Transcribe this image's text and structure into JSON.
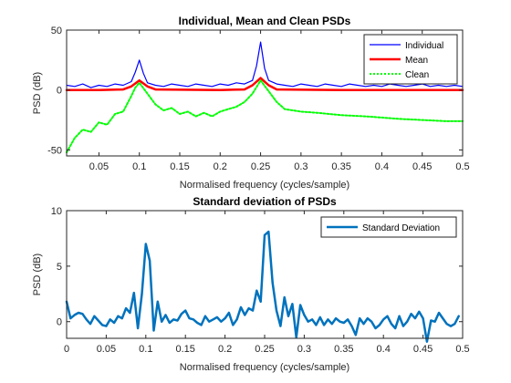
{
  "chart_data": [
    {
      "type": "line",
      "title": "Individual, Mean and Clean PSDs",
      "xlabel": "Normalised frequency (cycles/sample)",
      "ylabel": "PSD (dB)",
      "xlim": [
        0.01,
        0.5
      ],
      "ylim": [
        -55,
        50
      ],
      "xticks": [
        "0.05",
        "0.1",
        "0.15",
        "0.2",
        "0.25",
        "0.3",
        "0.35",
        "0.4",
        "0.45",
        "0.5"
      ],
      "yticks": [
        "-50",
        "0",
        "50"
      ],
      "legend_position": "top-right",
      "colors": {
        "individual": "#0000ff",
        "mean": "#ff0000",
        "clean": "#00ff00"
      },
      "series": [
        {
          "name": "Individual",
          "style": "solid",
          "x": [
            0.01,
            0.02,
            0.03,
            0.04,
            0.05,
            0.06,
            0.07,
            0.08,
            0.09,
            0.095,
            0.1,
            0.105,
            0.11,
            0.12,
            0.13,
            0.14,
            0.15,
            0.16,
            0.17,
            0.18,
            0.19,
            0.2,
            0.21,
            0.22,
            0.23,
            0.24,
            0.245,
            0.25,
            0.255,
            0.26,
            0.27,
            0.28,
            0.29,
            0.3,
            0.31,
            0.32,
            0.33,
            0.34,
            0.35,
            0.36,
            0.37,
            0.38,
            0.39,
            0.4,
            0.41,
            0.42,
            0.43,
            0.44,
            0.45,
            0.46,
            0.47,
            0.48,
            0.49,
            0.5
          ],
          "y": [
            4,
            3,
            5,
            2,
            4,
            3,
            5,
            4,
            7,
            15,
            25,
            14,
            6,
            4,
            3,
            5,
            4,
            3,
            5,
            4,
            3,
            5,
            4,
            6,
            5,
            8,
            20,
            40,
            18,
            8,
            5,
            4,
            3,
            5,
            4,
            3,
            5,
            4,
            3,
            5,
            4,
            3,
            4,
            3,
            5,
            4,
            3,
            4,
            5,
            3,
            4,
            3,
            4,
            3
          ]
        },
        {
          "name": "Mean",
          "style": "solid",
          "x": [
            0.01,
            0.05,
            0.08,
            0.09,
            0.1,
            0.11,
            0.12,
            0.2,
            0.23,
            0.24,
            0.25,
            0.26,
            0.27,
            0.35,
            0.45,
            0.5
          ],
          "y": [
            0,
            0,
            0.5,
            3,
            8,
            3,
            0.5,
            0,
            0.5,
            4,
            10,
            4,
            0.5,
            0,
            0,
            0
          ]
        },
        {
          "name": "Clean",
          "style": "dotted",
          "x": [
            0.01,
            0.02,
            0.03,
            0.04,
            0.05,
            0.06,
            0.07,
            0.08,
            0.09,
            0.095,
            0.1,
            0.11,
            0.12,
            0.13,
            0.14,
            0.15,
            0.16,
            0.17,
            0.18,
            0.19,
            0.2,
            0.21,
            0.22,
            0.23,
            0.24,
            0.25,
            0.26,
            0.27,
            0.28,
            0.3,
            0.32,
            0.35,
            0.38,
            0.4,
            0.42,
            0.45,
            0.48,
            0.5
          ],
          "y": [
            -52,
            -40,
            -33,
            -35,
            -27,
            -29,
            -20,
            -18,
            -5,
            2,
            6,
            -3,
            -12,
            -17,
            -15,
            -20,
            -18,
            -22,
            -19,
            -22,
            -18,
            -16,
            -14,
            -10,
            -3,
            8,
            -1,
            -10,
            -16,
            -18,
            -19,
            -21,
            -22,
            -23,
            -24,
            -25,
            -26,
            -26
          ]
        }
      ]
    },
    {
      "type": "line",
      "title": "Standard deviation of PSDs",
      "xlabel": "Normalised frequency (cycles/sample)",
      "ylabel": "PSD (dB)",
      "xlim": [
        0,
        0.5
      ],
      "ylim": [
        -1.5,
        10
      ],
      "xticks": [
        "0",
        "0.05",
        "0.1",
        "0.15",
        "0.2",
        "0.25",
        "0.3",
        "0.35",
        "0.4",
        "0.45",
        "0.5"
      ],
      "yticks": [
        "0",
        "5",
        "10"
      ],
      "legend_position": "top-right",
      "colors": {
        "std": "#0072bd"
      },
      "series": [
        {
          "name": "Standard Deviation",
          "style": "solid",
          "x": [
            0,
            0.005,
            0.01,
            0.015,
            0.02,
            0.025,
            0.03,
            0.035,
            0.04,
            0.045,
            0.05,
            0.055,
            0.06,
            0.065,
            0.07,
            0.075,
            0.08,
            0.085,
            0.09,
            0.095,
            0.1,
            0.105,
            0.11,
            0.115,
            0.12,
            0.125,
            0.13,
            0.135,
            0.14,
            0.145,
            0.15,
            0.155,
            0.16,
            0.165,
            0.17,
            0.175,
            0.18,
            0.185,
            0.19,
            0.195,
            0.2,
            0.205,
            0.21,
            0.215,
            0.22,
            0.225,
            0.23,
            0.235,
            0.24,
            0.245,
            0.25,
            0.255,
            0.26,
            0.265,
            0.27,
            0.275,
            0.28,
            0.285,
            0.29,
            0.295,
            0.3,
            0.305,
            0.31,
            0.315,
            0.32,
            0.325,
            0.33,
            0.335,
            0.34,
            0.345,
            0.35,
            0.355,
            0.36,
            0.365,
            0.37,
            0.375,
            0.38,
            0.385,
            0.39,
            0.395,
            0.4,
            0.405,
            0.41,
            0.415,
            0.42,
            0.425,
            0.43,
            0.435,
            0.44,
            0.445,
            0.45,
            0.455,
            0.46,
            0.465,
            0.47,
            0.475,
            0.48,
            0.485,
            0.49,
            0.495
          ],
          "y": [
            1.8,
            0.3,
            0.6,
            0.8,
            0.7,
            0.2,
            -0.2,
            0.5,
            0.1,
            -0.3,
            -0.4,
            0.2,
            -0.1,
            0.5,
            0.3,
            1.2,
            0.8,
            2.6,
            -0.6,
            2.5,
            7.0,
            5.5,
            -0.8,
            1.8,
            0.0,
            0.6,
            -0.1,
            0.2,
            0.1,
            0.7,
            1.0,
            0.3,
            0.2,
            -0.1,
            -0.3,
            0.5,
            0.0,
            0.2,
            0.4,
            0.0,
            0.3,
            0.8,
            -0.3,
            0.2,
            1.3,
            0.6,
            1.2,
            1.0,
            2.8,
            1.8,
            7.8,
            8.1,
            3.5,
            1.0,
            -0.4,
            2.2,
            0.5,
            1.6,
            -1.4,
            1.5,
            0.6,
            0.0,
            0.2,
            -0.3,
            0.4,
            -0.3,
            0.2,
            -0.2,
            0.3,
            0.0,
            -0.1,
            0.2,
            -0.4,
            -1.2,
            0.3,
            -0.2,
            0.3,
            0.0,
            -0.6,
            -0.3,
            0.2,
            0.5,
            -0.2,
            -0.6,
            0.5,
            -0.4,
            0.0,
            0.7,
            0.3,
            0.9,
            0.3,
            -1.8,
            0.1,
            0.0,
            0.8,
            0.3,
            -0.2,
            -0.4,
            -0.2,
            0.5
          ]
        }
      ]
    }
  ]
}
